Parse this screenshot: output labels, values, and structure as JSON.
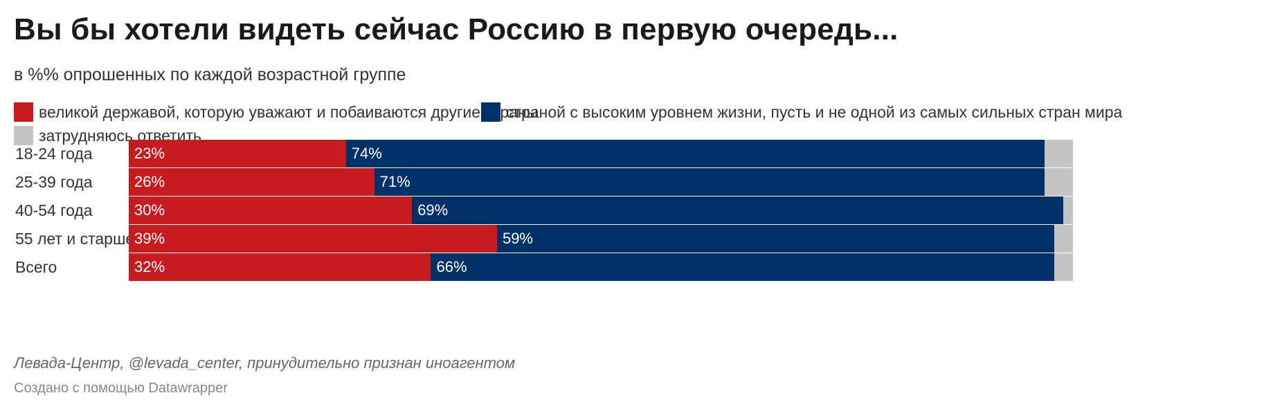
{
  "header": {
    "title": "Вы бы хотели видеть сейчас Россию в первую очередь...",
    "subtitle": "в %% опрошенных по каждой возрастной группе"
  },
  "legend": {
    "items": [
      {
        "label": "великой державой, которую уважают и побаиваются другие страны",
        "color": "#c71c1f"
      },
      {
        "label": "страной с высоким уровнем жизни, пусть и не одной из самых сильных стран мира",
        "color": "#003166"
      },
      {
        "label": "затрудняюсь ответить",
        "color": "#c4c4c4"
      }
    ]
  },
  "chart_data": {
    "type": "bar",
    "orientation": "horizontal",
    "stacked": true,
    "xlim": [
      0,
      100
    ],
    "categories": [
      "18-24 года",
      "25-39 года",
      "40-54 года",
      "55 лет и старше",
      "Всего"
    ],
    "series": [
      {
        "name": "великой державой, которую уважают и побаиваются другие страны",
        "values": [
          23,
          26,
          30,
          39,
          32
        ],
        "labels": [
          "23%",
          "26%",
          "30%",
          "39%",
          "32%"
        ],
        "color": "#c71c1f"
      },
      {
        "name": "страной с высоким уровнем жизни, пусть и не одной из самых сильных стран мира",
        "values": [
          74,
          71,
          69,
          59,
          66
        ],
        "labels": [
          "74%",
          "71%",
          "69%",
          "59%",
          "66%"
        ],
        "color": "#003166"
      },
      {
        "name": "затрудняюсь ответить",
        "values": [
          3,
          3,
          1,
          2,
          2
        ],
        "color": "#c4c4c4"
      }
    ],
    "legend_position": "top",
    "grid": false
  },
  "footer": {
    "source": "Левада-Центр, @levada_center, принудительно признан иноагентом",
    "credit": "Создано с помощью Datawrapper"
  }
}
